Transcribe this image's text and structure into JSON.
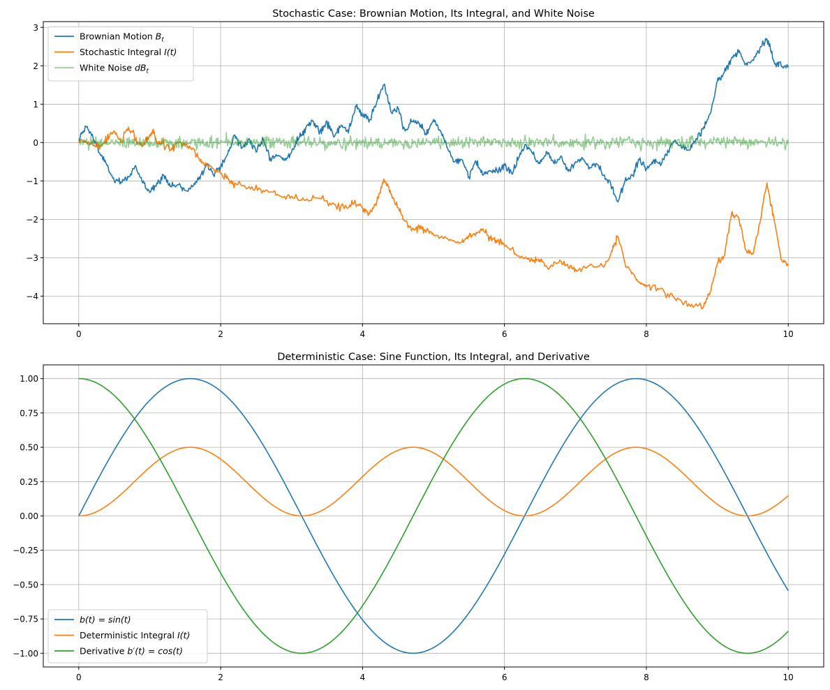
{
  "chart_data": [
    {
      "type": "line",
      "title": "Stochastic Case: Brownian Motion, Its Integral, and White Noise",
      "xlim": [
        -0.5,
        10.5
      ],
      "ylim": [
        -4.72,
        3.15
      ],
      "xticks": [
        0,
        2,
        4,
        6,
        8,
        10
      ],
      "yticks": [
        -4,
        -3,
        -2,
        -1,
        0,
        1,
        2,
        3
      ],
      "xtick_labels": [
        "0",
        "2",
        "4",
        "6",
        "8",
        "10"
      ],
      "ytick_labels": [
        "−4",
        "−3",
        "−2",
        "−1",
        "0",
        "1",
        "2",
        "3"
      ],
      "grid": true,
      "legend_position": "upper-left",
      "series": [
        {
          "name": "Brownian Motion B_t",
          "label_text": "Brownian Motion ",
          "label_math": "B",
          "label_sub": "t",
          "color": "#1f77b4",
          "opacity": 1,
          "points": [
            [
              0,
              0.05
            ],
            [
              0.1,
              0.42
            ],
            [
              0.2,
              0.15
            ],
            [
              0.3,
              -0.3
            ],
            [
              0.4,
              -0.6
            ],
            [
              0.5,
              -1.0
            ],
            [
              0.6,
              -1.05
            ],
            [
              0.7,
              -0.9
            ],
            [
              0.8,
              -0.6
            ],
            [
              0.9,
              -1.05
            ],
            [
              1.0,
              -1.3
            ],
            [
              1.1,
              -1.05
            ],
            [
              1.2,
              -0.85
            ],
            [
              1.3,
              -1.15
            ],
            [
              1.4,
              -1.1
            ],
            [
              1.5,
              -1.25
            ],
            [
              1.6,
              -1.15
            ],
            [
              1.7,
              -0.9
            ],
            [
              1.8,
              -0.55
            ],
            [
              1.9,
              -0.85
            ],
            [
              2.0,
              -0.6
            ],
            [
              2.1,
              -0.3
            ],
            [
              2.2,
              0.2
            ],
            [
              2.3,
              -0.15
            ],
            [
              2.4,
              0.1
            ],
            [
              2.5,
              -0.25
            ],
            [
              2.6,
              0.1
            ],
            [
              2.7,
              -0.4
            ],
            [
              2.8,
              -0.35
            ],
            [
              2.9,
              -0.45
            ],
            [
              3.0,
              -0.25
            ],
            [
              3.1,
              0.1
            ],
            [
              3.2,
              0.4
            ],
            [
              3.3,
              0.55
            ],
            [
              3.4,
              0.3
            ],
            [
              3.5,
              0.55
            ],
            [
              3.6,
              0.15
            ],
            [
              3.7,
              0.45
            ],
            [
              3.8,
              0.25
            ],
            [
              3.9,
              0.95
            ],
            [
              4.0,
              0.7
            ],
            [
              4.1,
              0.6
            ],
            [
              4.2,
              1.05
            ],
            [
              4.3,
              1.5
            ],
            [
              4.4,
              0.8
            ],
            [
              4.5,
              0.9
            ],
            [
              4.6,
              0.3
            ],
            [
              4.7,
              0.55
            ],
            [
              4.8,
              0.5
            ],
            [
              4.9,
              0.2
            ],
            [
              5.0,
              0.6
            ],
            [
              5.1,
              0.3
            ],
            [
              5.2,
              -0.15
            ],
            [
              5.3,
              -0.5
            ],
            [
              5.4,
              -0.45
            ],
            [
              5.5,
              -0.9
            ],
            [
              5.6,
              -0.5
            ],
            [
              5.7,
              -0.85
            ],
            [
              5.8,
              -0.75
            ],
            [
              5.9,
              -0.75
            ],
            [
              6.0,
              -0.6
            ],
            [
              6.1,
              -0.8
            ],
            [
              6.2,
              -0.4
            ],
            [
              6.3,
              -0.05
            ],
            [
              6.4,
              -0.3
            ],
            [
              6.5,
              -0.55
            ],
            [
              6.6,
              -0.25
            ],
            [
              6.7,
              -0.55
            ],
            [
              6.8,
              -0.35
            ],
            [
              6.9,
              -0.75
            ],
            [
              7.0,
              -0.5
            ],
            [
              7.1,
              -0.4
            ],
            [
              7.2,
              -0.65
            ],
            [
              7.3,
              -0.55
            ],
            [
              7.4,
              -0.85
            ],
            [
              7.5,
              -1.1
            ],
            [
              7.6,
              -1.55
            ],
            [
              7.7,
              -1.0
            ],
            [
              7.8,
              -0.85
            ],
            [
              7.9,
              -0.45
            ],
            [
              8.0,
              -0.7
            ],
            [
              8.1,
              -0.45
            ],
            [
              8.2,
              -0.6
            ],
            [
              8.3,
              -0.2
            ],
            [
              8.4,
              0.05
            ],
            [
              8.5,
              -0.15
            ],
            [
              8.6,
              -0.2
            ],
            [
              8.7,
              0.1
            ],
            [
              8.8,
              0.35
            ],
            [
              8.9,
              0.75
            ],
            [
              9.0,
              1.6
            ],
            [
              9.1,
              1.85
            ],
            [
              9.2,
              2.2
            ],
            [
              9.3,
              2.35
            ],
            [
              9.4,
              2.05
            ],
            [
              9.5,
              2.15
            ],
            [
              9.6,
              2.45
            ],
            [
              9.7,
              2.7
            ],
            [
              9.8,
              2.1
            ],
            [
              9.9,
              2.0
            ],
            [
              10.0,
              1.95
            ]
          ]
        },
        {
          "name": "Stochastic Integral I(t)",
          "label_text": "Stochastic Integral ",
          "label_math": "I(t)",
          "label_sub": "",
          "color": "#ff7f0e",
          "opacity": 1,
          "points": [
            [
              0,
              0.05
            ],
            [
              0.1,
              0.0
            ],
            [
              0.2,
              -0.05
            ],
            [
              0.3,
              -0.1
            ],
            [
              0.4,
              0.1
            ],
            [
              0.5,
              0.3
            ],
            [
              0.6,
              0.0
            ],
            [
              0.7,
              0.4
            ],
            [
              0.8,
              0.05
            ],
            [
              0.9,
              -0.1
            ],
            [
              1.0,
              0.2
            ],
            [
              1.05,
              0.35
            ],
            [
              1.1,
              0.0
            ],
            [
              1.2,
              -0.05
            ],
            [
              1.3,
              -0.2
            ],
            [
              1.4,
              0.0
            ],
            [
              1.5,
              -0.1
            ],
            [
              1.6,
              -0.15
            ],
            [
              1.7,
              -0.45
            ],
            [
              1.8,
              -0.55
            ],
            [
              1.9,
              -0.7
            ],
            [
              2.0,
              -0.8
            ],
            [
              2.1,
              -0.95
            ],
            [
              2.2,
              -1.05
            ],
            [
              2.4,
              -1.15
            ],
            [
              2.6,
              -1.25
            ],
            [
              2.8,
              -1.35
            ],
            [
              3.0,
              -1.4
            ],
            [
              3.2,
              -1.5
            ],
            [
              3.4,
              -1.45
            ],
            [
              3.6,
              -1.6
            ],
            [
              3.8,
              -1.7
            ],
            [
              3.9,
              -1.55
            ],
            [
              4.0,
              -1.7
            ],
            [
              4.1,
              -1.85
            ],
            [
              4.2,
              -1.55
            ],
            [
              4.3,
              -0.95
            ],
            [
              4.4,
              -1.35
            ],
            [
              4.5,
              -1.7
            ],
            [
              4.6,
              -2.05
            ],
            [
              4.7,
              -2.25
            ],
            [
              4.8,
              -2.2
            ],
            [
              4.9,
              -2.3
            ],
            [
              5.0,
              -2.4
            ],
            [
              5.2,
              -2.5
            ],
            [
              5.4,
              -2.6
            ],
            [
              5.5,
              -2.45
            ],
            [
              5.6,
              -2.35
            ],
            [
              5.7,
              -2.25
            ],
            [
              5.8,
              -2.5
            ],
            [
              5.9,
              -2.55
            ],
            [
              6.0,
              -2.7
            ],
            [
              6.2,
              -2.95
            ],
            [
              6.4,
              -3.1
            ],
            [
              6.5,
              -3.05
            ],
            [
              6.6,
              -3.25
            ],
            [
              6.8,
              -3.1
            ],
            [
              6.9,
              -3.25
            ],
            [
              7.0,
              -3.3
            ],
            [
              7.2,
              -3.2
            ],
            [
              7.4,
              -3.25
            ],
            [
              7.5,
              -2.9
            ],
            [
              7.6,
              -2.45
            ],
            [
              7.7,
              -3.15
            ],
            [
              7.8,
              -3.4
            ],
            [
              7.9,
              -3.65
            ],
            [
              8.0,
              -3.75
            ],
            [
              8.2,
              -3.8
            ],
            [
              8.4,
              -4.05
            ],
            [
              8.6,
              -4.2
            ],
            [
              8.8,
              -4.3
            ],
            [
              8.9,
              -3.9
            ],
            [
              9.0,
              -3.15
            ],
            [
              9.1,
              -2.95
            ],
            [
              9.2,
              -1.85
            ],
            [
              9.3,
              -1.95
            ],
            [
              9.4,
              -2.8
            ],
            [
              9.5,
              -2.9
            ],
            [
              9.6,
              -2.1
            ],
            [
              9.7,
              -1.05
            ],
            [
              9.8,
              -2.0
            ],
            [
              9.9,
              -3.05
            ],
            [
              10.0,
              -3.2
            ]
          ]
        },
        {
          "name": "White Noise dB_t",
          "label_text": "White Noise ",
          "label_math": "dB",
          "label_sub": "t",
          "color": "#2ca02c",
          "opacity": 0.5,
          "noise": {
            "amplitude": 0.1,
            "samples": 1000
          }
        }
      ]
    },
    {
      "type": "line",
      "title": "Deterministic Case: Sine Function, Its Integral, and Derivative",
      "xlim": [
        -0.5,
        10.5
      ],
      "ylim": [
        -1.1,
        1.1
      ],
      "xticks": [
        0,
        2,
        4,
        6,
        8,
        10
      ],
      "yticks": [
        -1.0,
        -0.75,
        -0.5,
        -0.25,
        0.0,
        0.25,
        0.5,
        0.75,
        1.0
      ],
      "xtick_labels": [
        "0",
        "2",
        "4",
        "6",
        "8",
        "10"
      ],
      "ytick_labels": [
        "−1.00",
        "−0.75",
        "−0.50",
        "−0.25",
        "0.00",
        "0.25",
        "0.50",
        "0.75",
        "1.00"
      ],
      "grid": true,
      "legend_position": "lower-left",
      "series": [
        {
          "name": "b(t) = sin(t)",
          "label_text": "",
          "label_math": "b(t) = sin(t)",
          "label_sub": "",
          "color": "#1f77b4",
          "opacity": 1,
          "function": "sin"
        },
        {
          "name": "Deterministic Integral I(t)",
          "label_text": "Deterministic Integral ",
          "label_math": "I(t)",
          "label_sub": "",
          "color": "#ff7f0e",
          "opacity": 1,
          "function": "half_sin_squared"
        },
        {
          "name": "Derivative b'(t) = cos(t)",
          "label_text": "Derivative ",
          "label_math": "b′(t) = cos(t)",
          "label_sub": "",
          "color": "#2ca02c",
          "opacity": 1,
          "function": "cos"
        }
      ]
    }
  ]
}
